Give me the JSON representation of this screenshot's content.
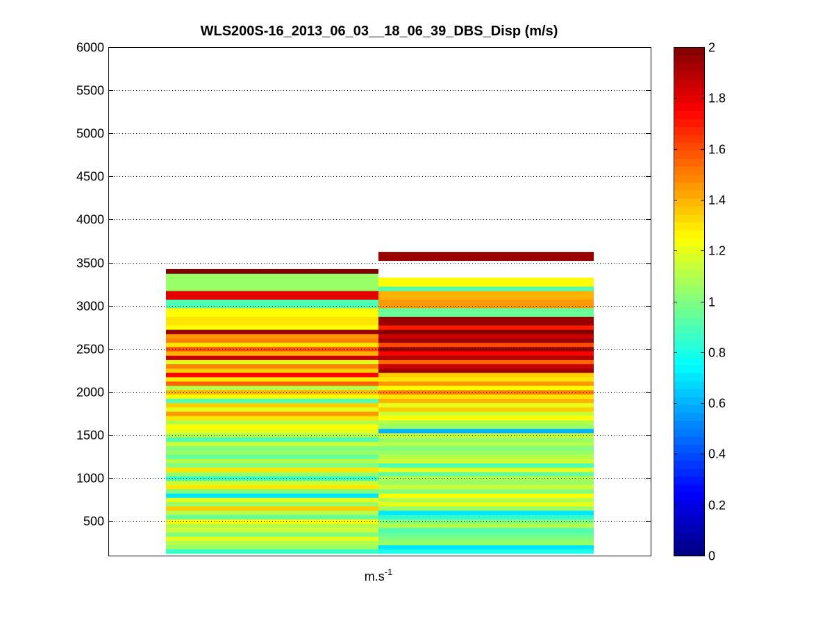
{
  "chart_data": {
    "type": "heatmap",
    "title": "WLS200S-16_2013_06_03__18_06_39_DBS_Disp (m/s)",
    "xlabel": "m.s",
    "xlabel_superscript": "-1",
    "ylabel": "",
    "ylim": [
      100,
      6000
    ],
    "yticks": [
      500,
      1000,
      1500,
      2000,
      2500,
      3000,
      3500,
      4000,
      4500,
      5000,
      5500,
      6000
    ],
    "grid": "y-dotted",
    "colormap": "jet",
    "clim": [
      0,
      2
    ],
    "colorbar_ticks": [
      0,
      0.2,
      0.4,
      0.6,
      0.8,
      1,
      1.2,
      1.4,
      1.6,
      1.8,
      2
    ],
    "colorbar_position": "right",
    "row_height": 50,
    "columns": [
      {
        "start": 125,
        "values": [
          0.85,
          1.05,
          1.1,
          1.2,
          1.0,
          1.15,
          1.1,
          1.25,
          0.95,
          1.1,
          1.35,
          1.05,
          1.2,
          0.7,
          1.0,
          1.3,
          1.15,
          0.85,
          1.05,
          1.3,
          1.0,
          1.1,
          0.95,
          1.05,
          1.0,
          1.15,
          0.9,
          1.1,
          1.2,
          1.25,
          1.1,
          1.3,
          1.45,
          1.2,
          1.35,
          0.9,
          1.25,
          1.4,
          1.1,
          1.55,
          1.3,
          1.75,
          1.35,
          1.5,
          1.2,
          1.85,
          1.4,
          1.6,
          1.3,
          1.5,
          1.45,
          1.95,
          1.25,
          1.3,
          1.3,
          1.25,
          1.25,
          0.9,
          0.9,
          1.8,
          1.8,
          1.05,
          1.05,
          1.05,
          1.05,
          2.0
        ]
      },
      {
        "start": 125,
        "values": [
          0.8,
          0.7,
          1.05,
          1.0,
          0.95,
          0.9,
          1.1,
          1.0,
          0.85,
          0.7,
          1.05,
          1.2,
          1.1,
          1.25,
          1.0,
          1.15,
          1.05,
          1.1,
          0.95,
          1.2,
          0.9,
          1.15,
          1.1,
          1.05,
          1.0,
          1.1,
          1.05,
          1.15,
          0.6,
          1.05,
          1.1,
          1.25,
          1.15,
          1.35,
          1.2,
          1.4,
          1.3,
          1.5,
          1.25,
          1.45,
          1.3,
          1.35,
          1.95,
          1.85,
          1.55,
          1.9,
          1.75,
          1.95,
          1.6,
          1.95,
          1.85,
          2.0,
          1.7,
          1.95,
          1.95,
          0.95,
          0.95,
          1.45,
          1.45,
          1.4,
          1.4,
          0.9,
          1.25,
          1.25,
          null,
          null,
          null,
          null,
          1.95,
          1.95
        ]
      }
    ]
  }
}
